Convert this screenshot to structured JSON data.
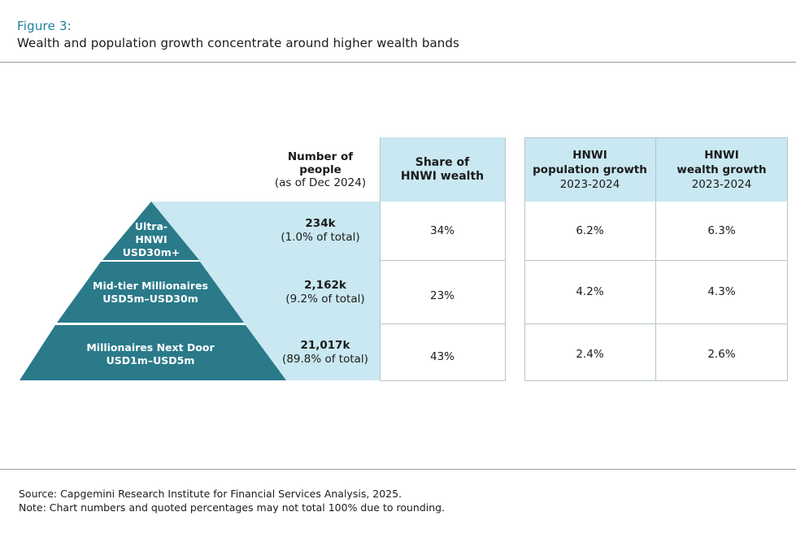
{
  "figure_label": "Figure 3:",
  "title": "Wealth and population growth concentrate around higher wealth bands",
  "headers": {
    "people_line1": "Number of",
    "people_line2": "people",
    "people_line3": "(as of Dec 2024)",
    "share_line1": "Share of",
    "share_line2": "HNWI wealth",
    "popgrowth_line1": "HNWI",
    "popgrowth_line2": "population growth",
    "popgrowth_line3": "2023-2024",
    "wealthgrowth_line1": "HNWI",
    "wealthgrowth_line2": "wealth growth",
    "wealthgrowth_line3": "2023-2024"
  },
  "chart_data": {
    "type": "table",
    "title": "Wealth and population growth concentrate around higher wealth bands",
    "rows": [
      {
        "tier_line1": "Ultra-",
        "tier_line2": "HNWI",
        "tier_line3": "USD30m+",
        "people": "234k",
        "people_pct": "(1.0% of total)",
        "share": "34%",
        "pop_growth": "6.2%",
        "wealth_growth": "6.3%"
      },
      {
        "tier_line1": "Mid-tier Millionaires",
        "tier_line2": "USD5m–USD30m",
        "people": "2,162k",
        "people_pct": "(9.2% of total)",
        "share": "23%",
        "pop_growth": "4.2%",
        "wealth_growth": "4.3%"
      },
      {
        "tier_line1": "Millionaires Next Door",
        "tier_line2": "USD1m–USD5m",
        "people": "21,017k",
        "people_pct": "(89.8% of total)",
        "share": "43%",
        "pop_growth": "2.4%",
        "wealth_growth": "2.6%"
      }
    ]
  },
  "colors": {
    "accent": "#1f7fa0",
    "pyramid": "#2a7a8a",
    "band": "#c9e8f1"
  },
  "source": "Source: Capgemini Research Institute for Financial Services Analysis, 2025.",
  "note": "Note: Chart numbers and quoted percentages may not total 100% due to rounding."
}
